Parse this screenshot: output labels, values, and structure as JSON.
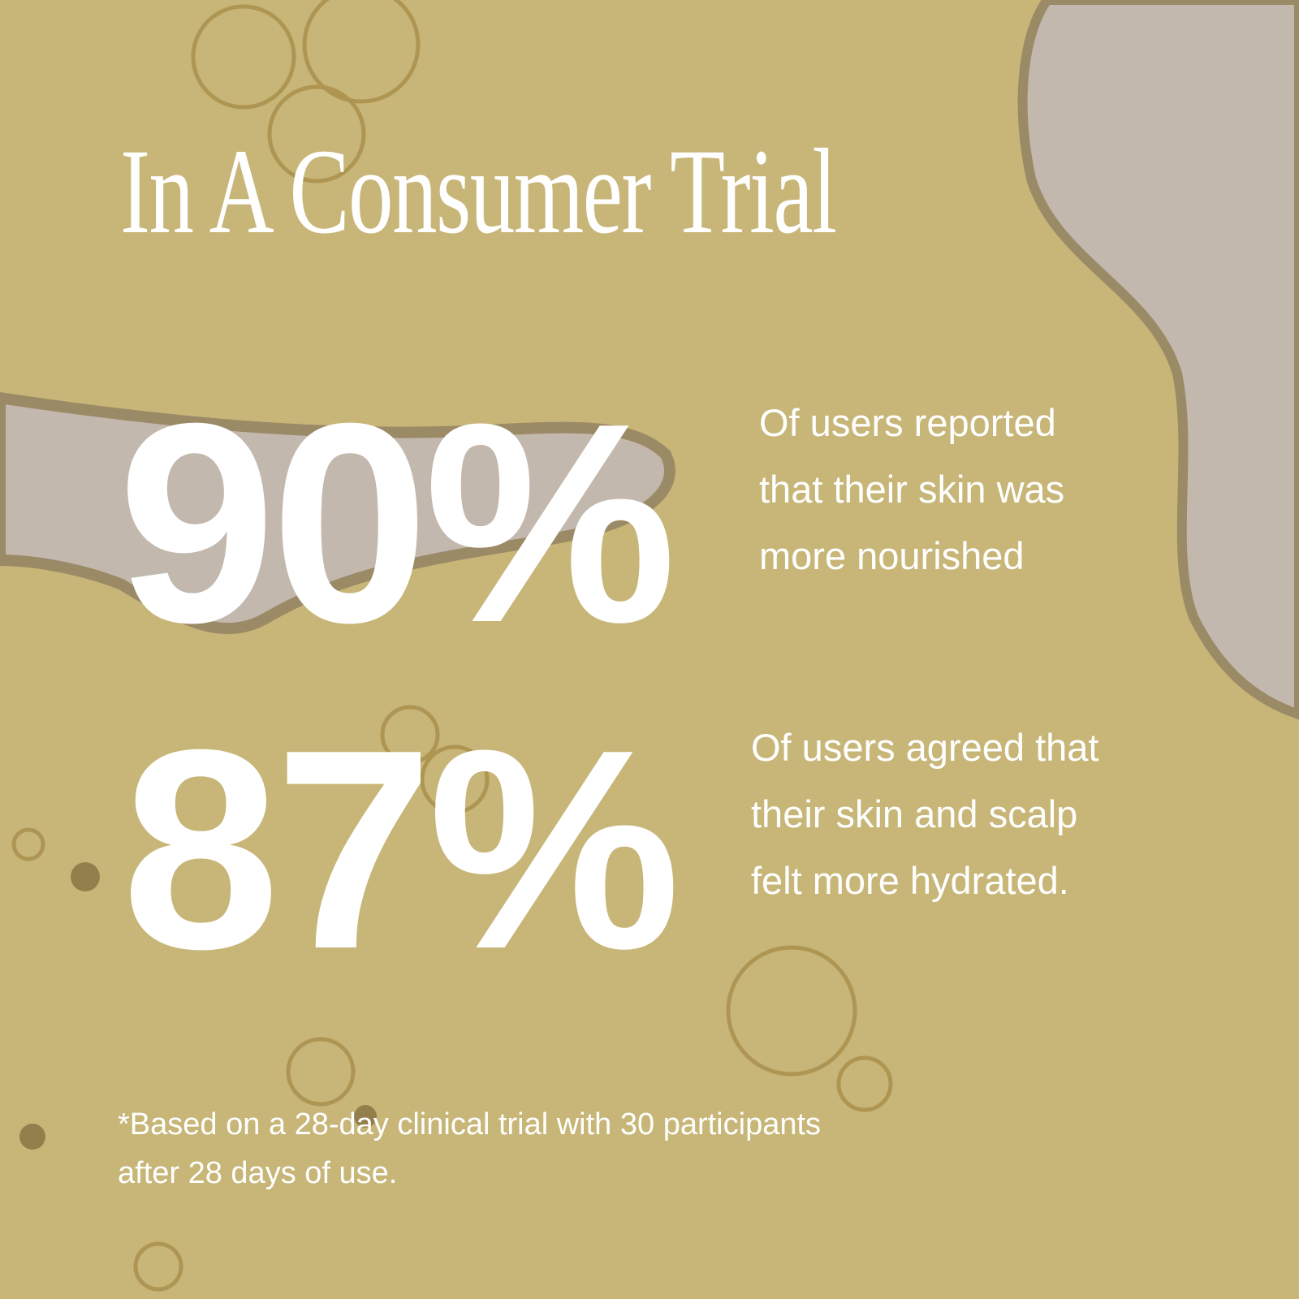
{
  "colors": {
    "background": "#c7b677",
    "liquid": "#c2b8ae",
    "text": "#ffffff"
  },
  "title": "In A Consumer Trial",
  "stats": [
    {
      "value": "90%",
      "lines": [
        "Of users reported",
        "that their skin was",
        "more nourished"
      ]
    },
    {
      "value": "87%",
      "lines": [
        "Of users agreed that",
        "their skin and scalp",
        "felt more hydrated."
      ]
    }
  ],
  "footnote": {
    "lines": [
      "*Based on a 28-day clinical trial with 30 participants",
      "after 28 days of use."
    ]
  }
}
